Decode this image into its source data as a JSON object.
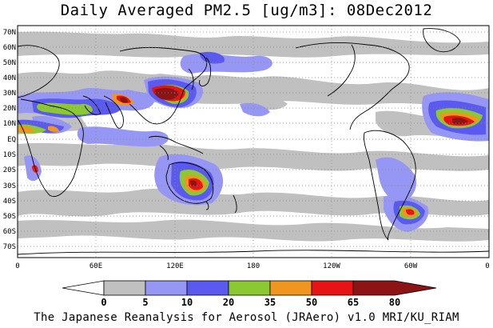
{
  "title": "Daily Averaged PM2.5 [ug/m3]: 08Dec2012",
  "footer": "The Japanese Reanalysis for Aerosol (JRAero) v1.0 MRI/KU_RIAM",
  "lat_labels": [
    "70N",
    "60N",
    "50N",
    "40N",
    "30N",
    "20N",
    "10N",
    "EQ",
    "10S",
    "20S",
    "30S",
    "40S",
    "50S",
    "60S",
    "70S"
  ],
  "lon_labels": [
    "0",
    "60E",
    "120E",
    "180",
    "120W",
    "60W",
    "0"
  ],
  "colorbar": {
    "levels": [
      "0",
      "5",
      "10",
      "20",
      "35",
      "50",
      "65",
      "80"
    ],
    "colors": [
      "#ffffff",
      "#c0c0c0",
      "#9696f5",
      "#5a5af0",
      "#8cc832",
      "#f0961e",
      "#e61414",
      "#8c1414"
    ]
  },
  "legend_field": {
    "type": "filled-contour-map",
    "variable": "PM2.5",
    "units": "ug/m3",
    "date": "08Dec2012",
    "contour_levels": [
      0,
      5,
      10,
      20,
      35,
      50,
      65,
      80
    ]
  }
}
